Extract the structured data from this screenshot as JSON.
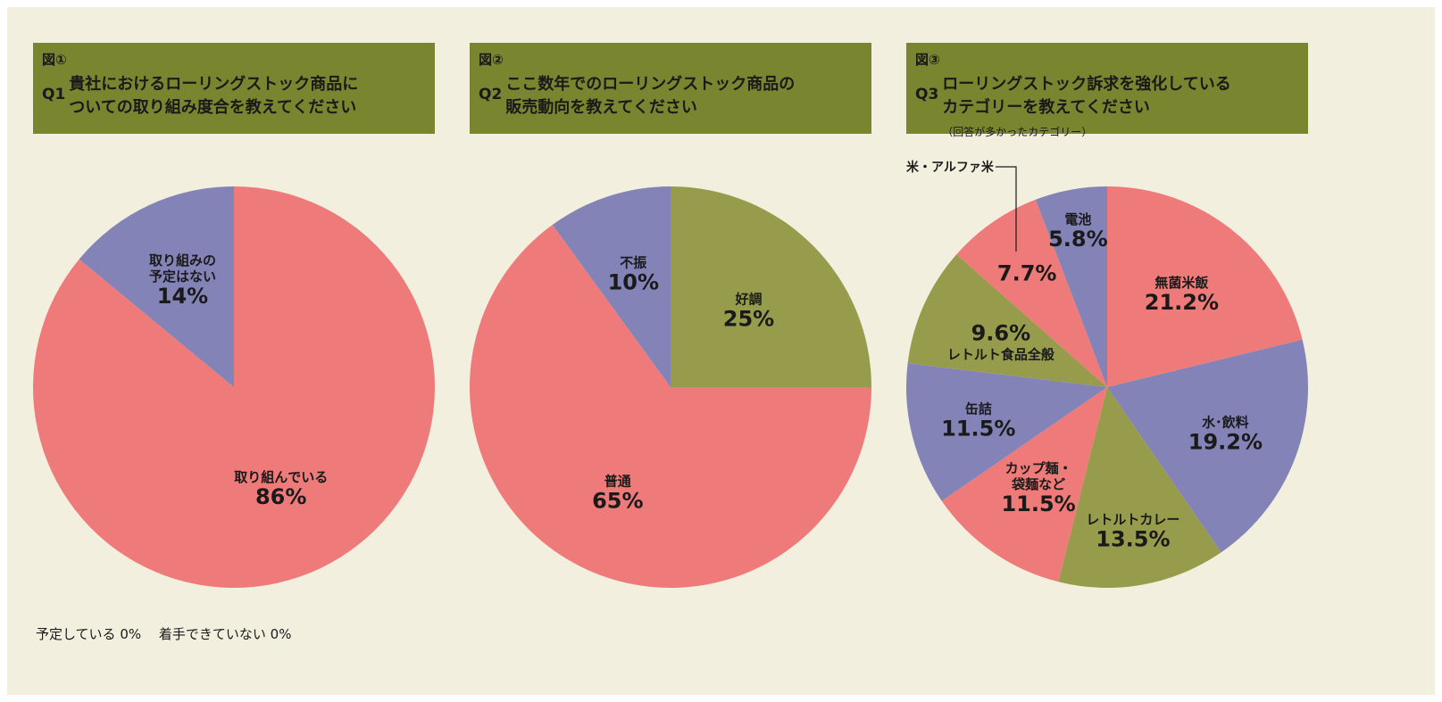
{
  "colors": {
    "pink": "#ee7b79",
    "purple": "#8483b8",
    "olive": "#979c4c",
    "header_bg": "#7a8530",
    "panel_bg": "#f3efdf"
  },
  "chart_data": [
    {
      "type": "pie",
      "figure_label": "図①",
      "question_no": "Q1",
      "title_line1": "貴社におけるローリングストック商品に",
      "title_line2": "ついての取り組み度合を教えてください",
      "note": "",
      "slices": [
        {
          "lines": [
            "取り組んでいる"
          ],
          "value_label": "86%",
          "value": 86,
          "color": "#ee7b79"
        },
        {
          "lines": [
            "取り組みの",
            "予定はない"
          ],
          "value_label": "14%",
          "value": 14,
          "color": "#8483b8"
        }
      ]
    },
    {
      "type": "pie",
      "figure_label": "図②",
      "question_no": "Q2",
      "title_line1": "ここ数年でのローリングストック商品の",
      "title_line2": "販売動向を教えてください",
      "note": "",
      "slices": [
        {
          "lines": [
            "好調"
          ],
          "value_label": "25%",
          "value": 25,
          "color": "#979c4c"
        },
        {
          "lines": [
            "普通"
          ],
          "value_label": "65%",
          "value": 65,
          "color": "#ee7b79"
        },
        {
          "lines": [
            "不振"
          ],
          "value_label": "10%",
          "value": 10,
          "color": "#8483b8"
        }
      ]
    },
    {
      "type": "pie",
      "figure_label": "図③",
      "question_no": "Q3",
      "title_line1": "ローリングストック訴求を強化している",
      "title_line2": "カテゴリーを教えてください",
      "note": "（回答が多かったカテゴリー）",
      "slices": [
        {
          "lines": [
            "無菌米飯"
          ],
          "value_label": "21.2%",
          "value": 21.2,
          "color": "#ee7b79"
        },
        {
          "lines": [
            "水･飲料"
          ],
          "value_label": "19.2%",
          "value": 19.2,
          "color": "#8483b8"
        },
        {
          "lines": [
            "レトルトカレー"
          ],
          "value_label": "13.5%",
          "value": 13.5,
          "color": "#979c4c"
        },
        {
          "lines": [
            "カップ麺・",
            "袋麺など"
          ],
          "value_label": "11.5%",
          "value": 11.5,
          "color": "#ee7b79"
        },
        {
          "lines": [
            "缶詰"
          ],
          "value_label": "11.5%",
          "value": 11.5,
          "color": "#8483b8"
        },
        {
          "lines": [
            "レトルト食品全般"
          ],
          "value_label": "9.6%",
          "value": 9.6,
          "color": "#979c4c",
          "value_first": true
        },
        {
          "lines": [],
          "value_label": "7.7%",
          "value": 7.7,
          "color": "#ee7b79"
        },
        {
          "lines": [
            "電池"
          ],
          "value_label": "5.8%",
          "value": 5.8,
          "color": "#8483b8"
        }
      ],
      "callout": "米・アルファ米"
    }
  ],
  "footnote": "予定している 0%　 着手できていない 0%"
}
